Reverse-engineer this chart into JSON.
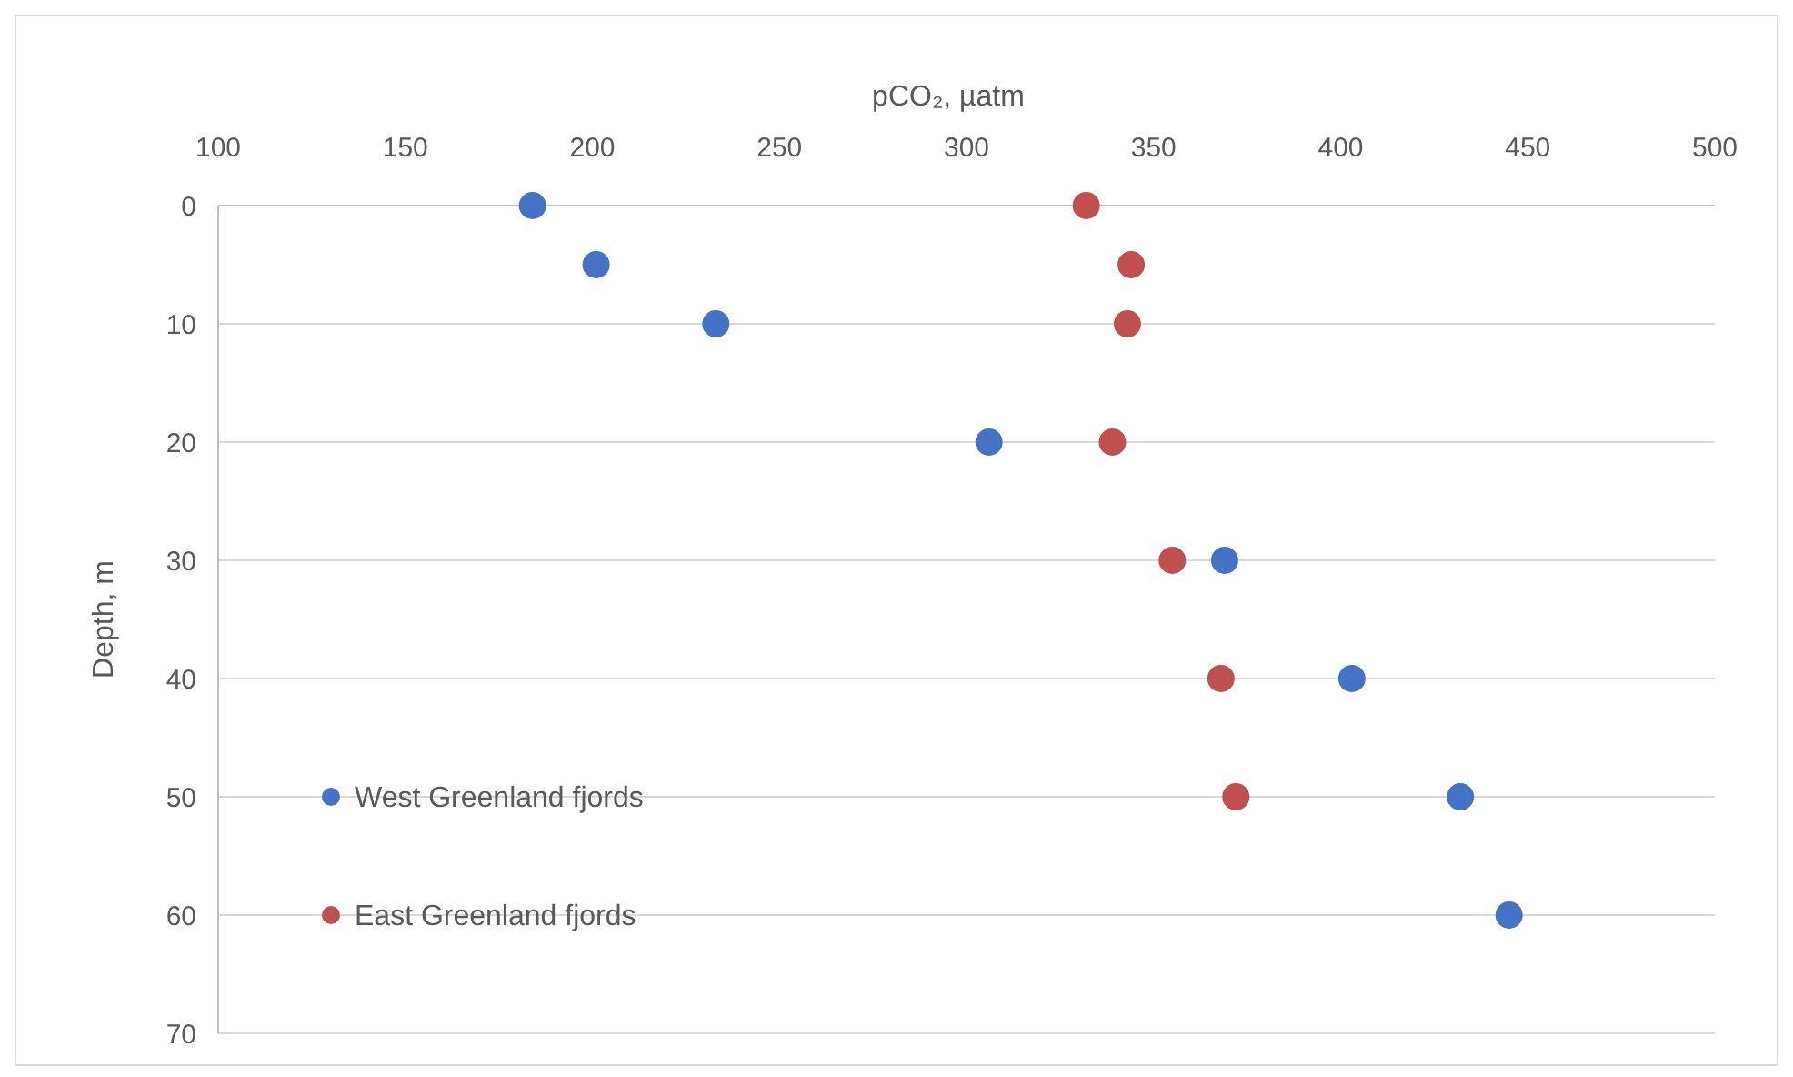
{
  "chart_data": {
    "type": "scatter",
    "xlabel": "pCO₂, µatm",
    "ylabel": "Depth, m",
    "xlim": [
      100,
      500
    ],
    "xticks": [
      100,
      150,
      200,
      250,
      300,
      350,
      400,
      450,
      500
    ],
    "ylim": [
      70,
      0
    ],
    "yticks": [
      0,
      10,
      20,
      30,
      40,
      50,
      60,
      70
    ],
    "grid": "y",
    "legend": "bottom left",
    "marker": "circle",
    "series": [
      {
        "name": "West Greenland fjords",
        "color": "#4472c4",
        "x": [
          184,
          201,
          233,
          306,
          369,
          403,
          432,
          445
        ],
        "values": [
          0,
          5,
          10,
          20,
          30,
          40,
          50,
          60
        ]
      },
      {
        "name": "East Greenland fjords",
        "color": "#c0504d",
        "x": [
          332,
          344,
          343,
          339,
          355,
          368,
          372
        ],
        "values": [
          0,
          5,
          10,
          20,
          30,
          40,
          50
        ]
      }
    ]
  }
}
